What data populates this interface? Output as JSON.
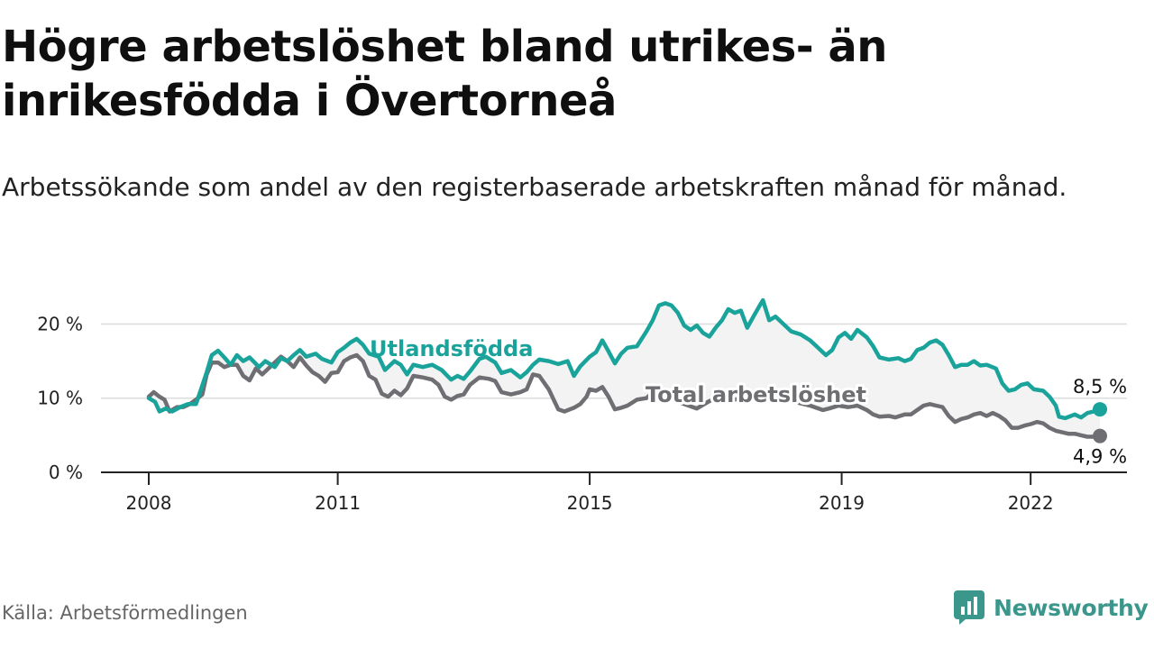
{
  "title": "Högre arbetslöshet bland utrikes- än inrikesfödda i Övertorneå",
  "subtitle": "Arbetssökande som andel av den registerbaserade arbetskraften månad för månad.",
  "source": "Källa: Arbetsförmedlingen",
  "logo": {
    "text": "Newsworthy",
    "icon": "bar-chart-icon"
  },
  "colors": {
    "utlandsfodda": "#1aa39a",
    "total": "#6e6e73",
    "fill": "#f3f3f3",
    "grid": "#dddddd",
    "axis": "#222222",
    "brand": "#3b968b"
  },
  "chart_data": {
    "type": "line",
    "title": "Högre arbetslöshet bland utrikes- än inrikesfödda i Övertorneå",
    "xlabel": "",
    "ylabel": "",
    "xlim": [
      2007.9,
      2023.6
    ],
    "ylim": [
      0,
      22
    ],
    "grid": true,
    "yticks": [
      {
        "value": 0,
        "label": "0 %"
      },
      {
        "value": 10,
        "label": "10 %"
      },
      {
        "value": 20,
        "label": "20 %"
      }
    ],
    "xticks": [
      {
        "value": 2008,
        "label": "2008"
      },
      {
        "value": 2011,
        "label": "2011"
      },
      {
        "value": 2015,
        "label": "2015"
      },
      {
        "value": 2019,
        "label": "2019"
      },
      {
        "value": 2022,
        "label": "2022"
      }
    ],
    "series": [
      {
        "key": "utlandsfodda",
        "name": "Utlandsfödda",
        "end_label": "8,5 %",
        "points": [
          [
            2008.0,
            10.0
          ],
          [
            2008.1,
            9.5
          ],
          [
            2008.17,
            8.2
          ],
          [
            2008.27,
            8.6
          ],
          [
            2008.37,
            8.2
          ],
          [
            2008.5,
            8.8
          ],
          [
            2008.62,
            9.2
          ],
          [
            2008.75,
            9.2
          ],
          [
            2008.83,
            11.2
          ],
          [
            2008.92,
            13.5
          ],
          [
            2009.0,
            15.8
          ],
          [
            2009.1,
            16.4
          ],
          [
            2009.2,
            15.5
          ],
          [
            2009.3,
            14.5
          ],
          [
            2009.4,
            15.8
          ],
          [
            2009.5,
            15.0
          ],
          [
            2009.6,
            15.5
          ],
          [
            2009.75,
            14.2
          ],
          [
            2009.85,
            15.0
          ],
          [
            2010.0,
            14.2
          ],
          [
            2010.1,
            15.4
          ],
          [
            2010.2,
            15.0
          ],
          [
            2010.3,
            15.8
          ],
          [
            2010.4,
            16.5
          ],
          [
            2010.5,
            15.6
          ],
          [
            2010.65,
            16.0
          ],
          [
            2010.75,
            15.3
          ],
          [
            2010.9,
            14.8
          ],
          [
            2011.0,
            16.2
          ],
          [
            2011.1,
            16.8
          ],
          [
            2011.2,
            17.5
          ],
          [
            2011.3,
            18.0
          ],
          [
            2011.4,
            17.2
          ],
          [
            2011.5,
            16.0
          ],
          [
            2011.65,
            15.6
          ],
          [
            2011.75,
            13.8
          ],
          [
            2011.9,
            15.0
          ],
          [
            2012.0,
            14.5
          ],
          [
            2012.1,
            13.2
          ],
          [
            2012.2,
            14.5
          ],
          [
            2012.35,
            14.2
          ],
          [
            2012.5,
            14.5
          ],
          [
            2012.65,
            13.8
          ],
          [
            2012.8,
            12.5
          ],
          [
            2012.9,
            13.0
          ],
          [
            2013.0,
            12.6
          ],
          [
            2013.1,
            13.6
          ],
          [
            2013.25,
            15.3
          ],
          [
            2013.35,
            15.6
          ],
          [
            2013.5,
            14.8
          ],
          [
            2013.6,
            13.4
          ],
          [
            2013.75,
            13.8
          ],
          [
            2013.9,
            12.8
          ],
          [
            2014.0,
            13.5
          ],
          [
            2014.1,
            14.5
          ],
          [
            2014.2,
            15.2
          ],
          [
            2014.35,
            15.0
          ],
          [
            2014.5,
            14.6
          ],
          [
            2014.65,
            15.0
          ],
          [
            2014.75,
            13.0
          ],
          [
            2014.85,
            14.3
          ],
          [
            2015.0,
            15.6
          ],
          [
            2015.1,
            16.2
          ],
          [
            2015.2,
            17.8
          ],
          [
            2015.3,
            16.3
          ],
          [
            2015.4,
            14.7
          ],
          [
            2015.5,
            16.0
          ],
          [
            2015.6,
            16.8
          ],
          [
            2015.75,
            17.0
          ],
          [
            2015.9,
            19.0
          ],
          [
            2016.0,
            20.5
          ],
          [
            2016.1,
            22.5
          ],
          [
            2016.2,
            22.8
          ],
          [
            2016.3,
            22.5
          ],
          [
            2016.4,
            21.5
          ],
          [
            2016.5,
            19.8
          ],
          [
            2016.6,
            19.2
          ],
          [
            2016.7,
            19.8
          ],
          [
            2016.8,
            18.8
          ],
          [
            2016.9,
            18.3
          ],
          [
            2017.0,
            19.5
          ],
          [
            2017.1,
            20.5
          ],
          [
            2017.2,
            22.0
          ],
          [
            2017.3,
            21.5
          ],
          [
            2017.4,
            21.8
          ],
          [
            2017.5,
            19.5
          ],
          [
            2017.6,
            21.0
          ],
          [
            2017.7,
            22.5
          ],
          [
            2017.75,
            23.2
          ],
          [
            2017.85,
            20.5
          ],
          [
            2017.95,
            21.0
          ],
          [
            2018.1,
            19.8
          ],
          [
            2018.2,
            19.0
          ],
          [
            2018.35,
            18.6
          ],
          [
            2018.5,
            17.8
          ],
          [
            2018.6,
            17.0
          ],
          [
            2018.75,
            15.8
          ],
          [
            2018.85,
            16.5
          ],
          [
            2018.95,
            18.2
          ],
          [
            2019.05,
            18.8
          ],
          [
            2019.15,
            18.0
          ],
          [
            2019.25,
            19.2
          ],
          [
            2019.4,
            18.2
          ],
          [
            2019.5,
            17.0
          ],
          [
            2019.6,
            15.5
          ],
          [
            2019.75,
            15.2
          ],
          [
            2019.9,
            15.4
          ],
          [
            2020.0,
            15.0
          ],
          [
            2020.1,
            15.3
          ],
          [
            2020.2,
            16.5
          ],
          [
            2020.3,
            16.8
          ],
          [
            2020.4,
            17.5
          ],
          [
            2020.5,
            17.8
          ],
          [
            2020.6,
            17.2
          ],
          [
            2020.7,
            15.8
          ],
          [
            2020.8,
            14.2
          ],
          [
            2020.9,
            14.5
          ],
          [
            2021.0,
            14.5
          ],
          [
            2021.1,
            15.0
          ],
          [
            2021.2,
            14.4
          ],
          [
            2021.3,
            14.5
          ],
          [
            2021.45,
            14.0
          ],
          [
            2021.55,
            12.0
          ],
          [
            2021.65,
            11.0
          ],
          [
            2021.75,
            11.2
          ],
          [
            2021.85,
            11.8
          ],
          [
            2021.95,
            12.0
          ],
          [
            2022.05,
            11.2
          ],
          [
            2022.2,
            11.0
          ],
          [
            2022.3,
            10.2
          ],
          [
            2022.4,
            9.0
          ],
          [
            2022.45,
            7.5
          ],
          [
            2022.55,
            7.3
          ],
          [
            2022.7,
            7.8
          ],
          [
            2022.8,
            7.4
          ],
          [
            2022.9,
            8.0
          ],
          [
            2023.0,
            8.2
          ],
          [
            2023.1,
            8.5
          ]
        ]
      },
      {
        "key": "total",
        "name": "Total arbetslöshet",
        "end_label": "4,9 %",
        "points": [
          [
            2008.0,
            10.2
          ],
          [
            2008.08,
            10.8
          ],
          [
            2008.17,
            10.2
          ],
          [
            2008.25,
            9.8
          ],
          [
            2008.33,
            8.2
          ],
          [
            2008.45,
            8.8
          ],
          [
            2008.55,
            8.8
          ],
          [
            2008.65,
            9.2
          ],
          [
            2008.75,
            9.8
          ],
          [
            2008.85,
            10.5
          ],
          [
            2008.92,
            13.2
          ],
          [
            2009.0,
            14.8
          ],
          [
            2009.1,
            14.8
          ],
          [
            2009.2,
            14.2
          ],
          [
            2009.3,
            14.5
          ],
          [
            2009.4,
            14.5
          ],
          [
            2009.5,
            13.0
          ],
          [
            2009.6,
            12.4
          ],
          [
            2009.7,
            14.0
          ],
          [
            2009.8,
            13.2
          ],
          [
            2009.9,
            14.0
          ],
          [
            2010.0,
            14.8
          ],
          [
            2010.1,
            15.6
          ],
          [
            2010.2,
            15.0
          ],
          [
            2010.3,
            14.2
          ],
          [
            2010.4,
            15.5
          ],
          [
            2010.5,
            14.4
          ],
          [
            2010.6,
            13.5
          ],
          [
            2010.7,
            13.0
          ],
          [
            2010.8,
            12.2
          ],
          [
            2010.9,
            13.4
          ],
          [
            2011.0,
            13.5
          ],
          [
            2011.1,
            15.0
          ],
          [
            2011.2,
            15.5
          ],
          [
            2011.3,
            15.8
          ],
          [
            2011.4,
            15.0
          ],
          [
            2011.5,
            13.0
          ],
          [
            2011.6,
            12.5
          ],
          [
            2011.7,
            10.6
          ],
          [
            2011.8,
            10.2
          ],
          [
            2011.9,
            11.0
          ],
          [
            2012.0,
            10.4
          ],
          [
            2012.1,
            11.3
          ],
          [
            2012.2,
            13.0
          ],
          [
            2012.35,
            12.8
          ],
          [
            2012.5,
            12.5
          ],
          [
            2012.6,
            11.8
          ],
          [
            2012.7,
            10.2
          ],
          [
            2012.8,
            9.8
          ],
          [
            2012.9,
            10.3
          ],
          [
            2013.0,
            10.5
          ],
          [
            2013.1,
            11.8
          ],
          [
            2013.25,
            12.8
          ],
          [
            2013.4,
            12.6
          ],
          [
            2013.5,
            12.3
          ],
          [
            2013.6,
            10.8
          ],
          [
            2013.75,
            10.5
          ],
          [
            2013.9,
            10.8
          ],
          [
            2014.0,
            11.2
          ],
          [
            2014.1,
            13.2
          ],
          [
            2014.2,
            13.0
          ],
          [
            2014.35,
            11.2
          ],
          [
            2014.5,
            8.5
          ],
          [
            2014.6,
            8.2
          ],
          [
            2014.75,
            8.7
          ],
          [
            2014.85,
            9.2
          ],
          [
            2014.95,
            10.2
          ],
          [
            2015.0,
            11.2
          ],
          [
            2015.1,
            11.0
          ],
          [
            2015.2,
            11.5
          ],
          [
            2015.3,
            10.2
          ],
          [
            2015.4,
            8.5
          ],
          [
            2015.5,
            8.7
          ],
          [
            2015.6,
            9.0
          ],
          [
            2015.75,
            9.8
          ],
          [
            2015.9,
            10.0
          ],
          [
            2016.0,
            10.8
          ],
          [
            2016.2,
            10.2
          ],
          [
            2016.5,
            9.2
          ],
          [
            2016.7,
            8.6
          ],
          [
            2016.9,
            9.6
          ],
          [
            2017.1,
            10.2
          ],
          [
            2017.3,
            9.8
          ],
          [
            2017.5,
            10.2
          ],
          [
            2017.7,
            10.5
          ],
          [
            2017.9,
            10.0
          ],
          [
            2018.1,
            9.8
          ],
          [
            2018.3,
            9.4
          ],
          [
            2018.5,
            9.0
          ],
          [
            2018.7,
            8.4
          ],
          [
            2018.8,
            8.6
          ],
          [
            2018.95,
            9.0
          ],
          [
            2019.1,
            8.8
          ],
          [
            2019.25,
            9.0
          ],
          [
            2019.4,
            8.4
          ],
          [
            2019.5,
            7.8
          ],
          [
            2019.6,
            7.5
          ],
          [
            2019.75,
            7.6
          ],
          [
            2019.85,
            7.4
          ],
          [
            2020.0,
            7.8
          ],
          [
            2020.1,
            7.8
          ],
          [
            2020.2,
            8.4
          ],
          [
            2020.3,
            9.0
          ],
          [
            2020.4,
            9.2
          ],
          [
            2020.5,
            9.0
          ],
          [
            2020.6,
            8.8
          ],
          [
            2020.7,
            7.6
          ],
          [
            2020.8,
            6.8
          ],
          [
            2020.9,
            7.2
          ],
          [
            2021.0,
            7.4
          ],
          [
            2021.1,
            7.8
          ],
          [
            2021.2,
            8.0
          ],
          [
            2021.3,
            7.6
          ],
          [
            2021.4,
            8.0
          ],
          [
            2021.5,
            7.6
          ],
          [
            2021.6,
            7.0
          ],
          [
            2021.7,
            6.0
          ],
          [
            2021.8,
            6.0
          ],
          [
            2021.9,
            6.3
          ],
          [
            2022.0,
            6.5
          ],
          [
            2022.1,
            6.8
          ],
          [
            2022.2,
            6.6
          ],
          [
            2022.3,
            6.0
          ],
          [
            2022.4,
            5.6
          ],
          [
            2022.5,
            5.4
          ],
          [
            2022.6,
            5.2
          ],
          [
            2022.7,
            5.2
          ],
          [
            2022.8,
            5.0
          ],
          [
            2022.9,
            4.8
          ],
          [
            2023.0,
            4.8
          ],
          [
            2023.1,
            4.9
          ]
        ]
      }
    ],
    "annotations": [
      {
        "series": "utlandsfodda",
        "text": "Utlandsfödda"
      },
      {
        "series": "total",
        "text": "Total arbetslöshet"
      }
    ]
  }
}
